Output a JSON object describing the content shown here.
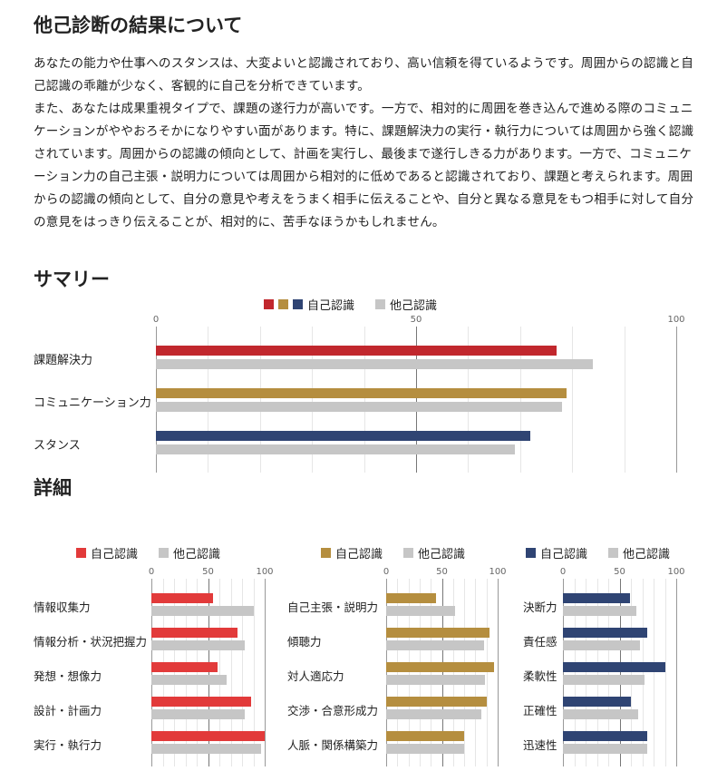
{
  "title": "他己診断の結果について",
  "paragraphs": [
    "あなたの能力や仕事へのスタンスは、大変よいと認識されており、高い信頼を得ているようです。周囲からの認識と自己認識の乖離が少なく、客観的に自己を分析できています。",
    "また、あなたは成果重視タイプで、課題の遂行力が高いです。一方で、相対的に周囲を巻き込んで進める際のコミュニケーションがややおろそかになりやすい面があります。特に、課題解決力の実行・執行力については周囲から強く認識されています。周囲からの認識の傾向として、計画を実行し、最後まで遂行しきる力があります。一方で、コミュニケーション力の自己主張・説明力については周囲から相対的に低めであると認識されており、課題と考えられます。周囲からの認識の傾向として、自分の意見や考えをうまく相手に伝えることや、自分と異なる意見をもつ相手に対して自分の意見をはっきり伝えることが、相対的に、苦手なほうかもしれません。"
  ],
  "summary_title": "サマリー",
  "detail_title": "詳細",
  "chart_data": [
    {
      "type": "bar",
      "title": "サマリー",
      "legend": [
        "自己認識",
        "他己認識"
      ],
      "ticks": [
        "0",
        "50",
        "100"
      ],
      "xlim": [
        0,
        100
      ],
      "categories": [
        "課題解決力",
        "コミュニケーション力",
        "スタンス"
      ],
      "self_colors": [
        "#c1272d",
        "#b58e3f",
        "#2f4473"
      ],
      "other_color": "#c6c6c6",
      "series": [
        {
          "name": "自己認識",
          "values": [
            77,
            79,
            72
          ]
        },
        {
          "name": "他己認識",
          "values": [
            84,
            78,
            69
          ]
        }
      ]
    },
    {
      "type": "bar",
      "title": "課題解決力",
      "legend": [
        "自己認識",
        "他己認識"
      ],
      "ticks": [
        "0",
        "50",
        "100"
      ],
      "xlim": [
        0,
        100
      ],
      "categories": [
        "情報収集力",
        "情報分析・状況把握力",
        "発想・想像力",
        "設計・計画力",
        "実行・執行力"
      ],
      "self_color": "#e23a3a",
      "other_color": "#c6c6c6",
      "series": [
        {
          "name": "自己認識",
          "values": [
            54,
            76,
            58,
            88,
            100
          ]
        },
        {
          "name": "他己認識",
          "values": [
            90,
            82,
            66,
            82,
            97
          ]
        }
      ]
    },
    {
      "type": "bar",
      "title": "コミュニケーション力",
      "legend": [
        "自己認識",
        "他己認識"
      ],
      "ticks": [
        "0",
        "50",
        "100"
      ],
      "xlim": [
        0,
        100
      ],
      "categories": [
        "自己主張・説明力",
        "傾聴力",
        "対人適応力",
        "交渉・合意形成力",
        "人脈・関係構築力"
      ],
      "self_color": "#b58e3f",
      "other_color": "#c6c6c6",
      "series": [
        {
          "name": "自己認識",
          "values": [
            45,
            93,
            97,
            90,
            70
          ]
        },
        {
          "name": "他己認識",
          "values": [
            62,
            88,
            89,
            85,
            70
          ]
        }
      ]
    },
    {
      "type": "bar",
      "title": "スタンス",
      "legend": [
        "自己認識",
        "他己認識"
      ],
      "ticks": [
        "0",
        "50",
        "100"
      ],
      "xlim": [
        0,
        100
      ],
      "categories": [
        "決断力",
        "責任感",
        "柔軟性",
        "正確性",
        "迅速性"
      ],
      "self_color": "#2f4473",
      "other_color": "#c6c6c6",
      "series": [
        {
          "name": "自己認識",
          "values": [
            59,
            74,
            90,
            60,
            74
          ]
        },
        {
          "name": "他己認識",
          "values": [
            65,
            68,
            72,
            66,
            74
          ]
        }
      ]
    }
  ]
}
